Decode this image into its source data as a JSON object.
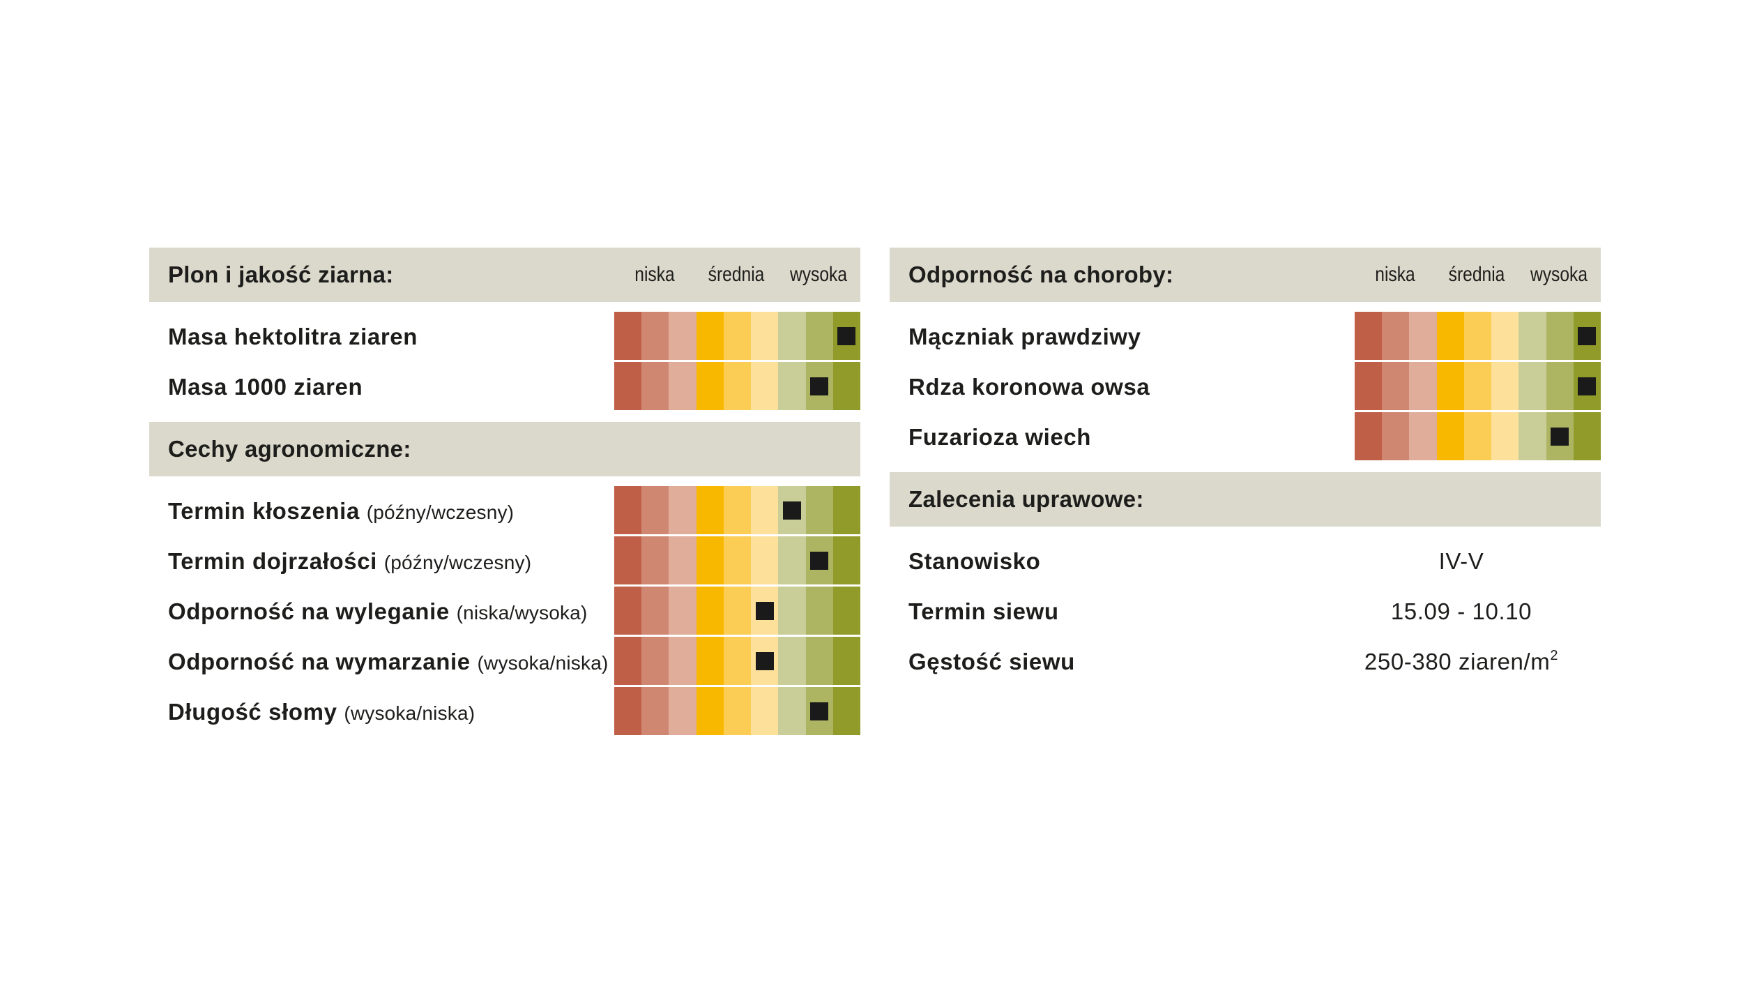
{
  "scale_colors": [
    "#bf5f47",
    "#d08772",
    "#dfad9a",
    "#f9b800",
    "#fccd55",
    "#fde09a",
    "#c9ce98",
    "#adb563",
    "#919b29"
  ],
  "legend": {
    "low": "niska",
    "mid": "średnia",
    "high": "wysoka"
  },
  "left_panel": {
    "section1": {
      "title": "Plon i jakość ziarna:",
      "rows": [
        {
          "label": "Masa hektolitra ziaren",
          "note": "",
          "level": 8
        },
        {
          "label": "Masa 1000 ziaren",
          "note": "",
          "level": 7
        }
      ]
    },
    "section2": {
      "title": "Cechy agronomiczne:",
      "rows": [
        {
          "label": "Termin kłoszenia",
          "note": "(późny/wczesny)",
          "level": 6
        },
        {
          "label": "Termin dojrzałości",
          "note": "(późny/wczesny)",
          "level": 7
        },
        {
          "label": "Odporność na wyleganie",
          "note": "(niska/wysoka)",
          "level": 5
        },
        {
          "label": "Odporność na wymarzanie",
          "note": "(wysoka/niska)",
          "level": 5
        },
        {
          "label": "Długość słomy",
          "note": "(wysoka/niska)",
          "level": 7
        }
      ]
    }
  },
  "right_panel": {
    "section1": {
      "title": "Odporność na choroby:",
      "rows": [
        {
          "label": "Mączniak prawdziwy",
          "note": "",
          "level": 8
        },
        {
          "label": "Rdza koronowa owsa",
          "note": "",
          "level": 8
        },
        {
          "label": "Fuzarioza wiech",
          "note": "",
          "level": 7
        }
      ]
    },
    "section2": {
      "title": "Zalecenia uprawowe:",
      "rows": [
        {
          "label": "Stanowisko",
          "value": "IV-V",
          "sup": ""
        },
        {
          "label": "Termin siewu",
          "value": "15.09 - 10.10",
          "sup": ""
        },
        {
          "label": "Gęstość siewu",
          "value": "250-380 ziaren/m",
          "sup": "2"
        }
      ]
    }
  }
}
